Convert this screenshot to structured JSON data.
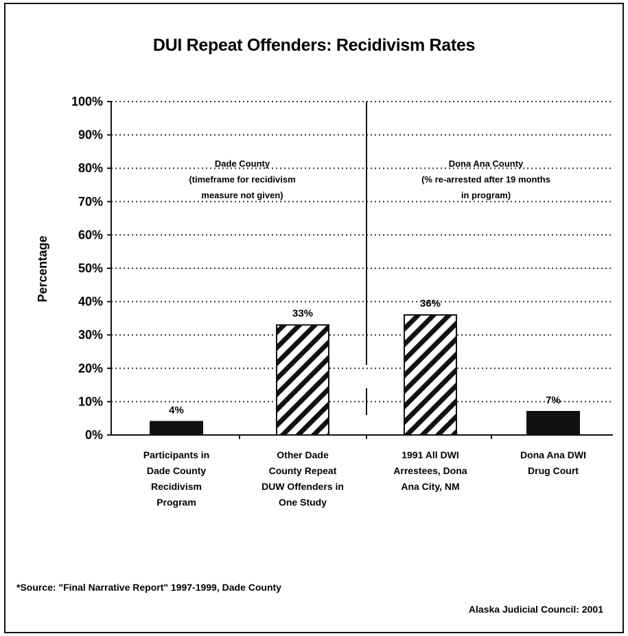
{
  "chart_data": {
    "type": "bar",
    "title": "DUI Repeat Offenders: Recidivism Rates",
    "ylabel": "Percentage",
    "ylim": [
      0,
      100
    ],
    "yticks": [
      "0%",
      "10%",
      "20%",
      "30%",
      "40%",
      "50%",
      "60%",
      "70%",
      "80%",
      "90%",
      "100%"
    ],
    "grid": true,
    "categories": [
      [
        "Participants in",
        "Dade County",
        "Recidivism",
        "Program"
      ],
      [
        "Other Dade",
        "County Repeat",
        "DUW Offenders in",
        "One Study"
      ],
      [
        "1991 All DWI",
        "Arrestees, Dona",
        "Ana City, NM"
      ],
      [
        "Dona Ana DWI",
        "Drug Court"
      ]
    ],
    "values": [
      4,
      33,
      36,
      7
    ],
    "data_labels": [
      "4%",
      "33%",
      "36%",
      "7%"
    ],
    "bar_fill": [
      "solid",
      "hatched",
      "hatched",
      "solid"
    ],
    "colors": {
      "solid_bar": "#111111",
      "hatch": "#111111",
      "grid": "#333333",
      "background": "#ffffff"
    },
    "regions": [
      {
        "lines": [
          "Dade County",
          "(timeframe for recidivism",
          "measure not given)"
        ]
      },
      {
        "lines": [
          "Dona Ana County",
          "(% re-arrested after 19 months",
          "in program)"
        ]
      }
    ]
  },
  "notes": {
    "source": "*Source: \"Final Narrative Report\" 1997-1999, Dade County",
    "credit": "Alaska Judicial Council: 2001"
  }
}
